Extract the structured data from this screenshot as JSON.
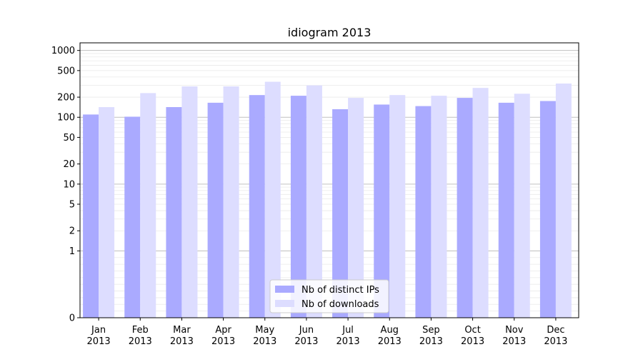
{
  "chart_data": {
    "type": "bar",
    "title": "idiogram 2013",
    "xlabel": "",
    "ylabel": "",
    "yscale": "symlog",
    "ylim": [
      0,
      1300
    ],
    "yticks": [
      0,
      1,
      2,
      5,
      10,
      20,
      50,
      100,
      200,
      500,
      1000
    ],
    "grid": true,
    "legend_position": "lower-center",
    "categories": [
      [
        "Jan",
        "2013"
      ],
      [
        "Feb",
        "2013"
      ],
      [
        "Mar",
        "2013"
      ],
      [
        "Apr",
        "2013"
      ],
      [
        "May",
        "2013"
      ],
      [
        "Jun",
        "2013"
      ],
      [
        "Jul",
        "2013"
      ],
      [
        "Aug",
        "2013"
      ],
      [
        "Sep",
        "2013"
      ],
      [
        "Oct",
        "2013"
      ],
      [
        "Nov",
        "2013"
      ],
      [
        "Dec",
        "2013"
      ]
    ],
    "series": [
      {
        "name": "Nb of distinct IPs",
        "color": "#aaaaff",
        "values": [
          110,
          102,
          142,
          165,
          215,
          210,
          132,
          155,
          147,
          195,
          165,
          175
        ]
      },
      {
        "name": "Nb of downloads",
        "color": "#ddddff",
        "values": [
          142,
          230,
          290,
          290,
          340,
          300,
          195,
          215,
          210,
          275,
          225,
          320
        ]
      }
    ]
  }
}
